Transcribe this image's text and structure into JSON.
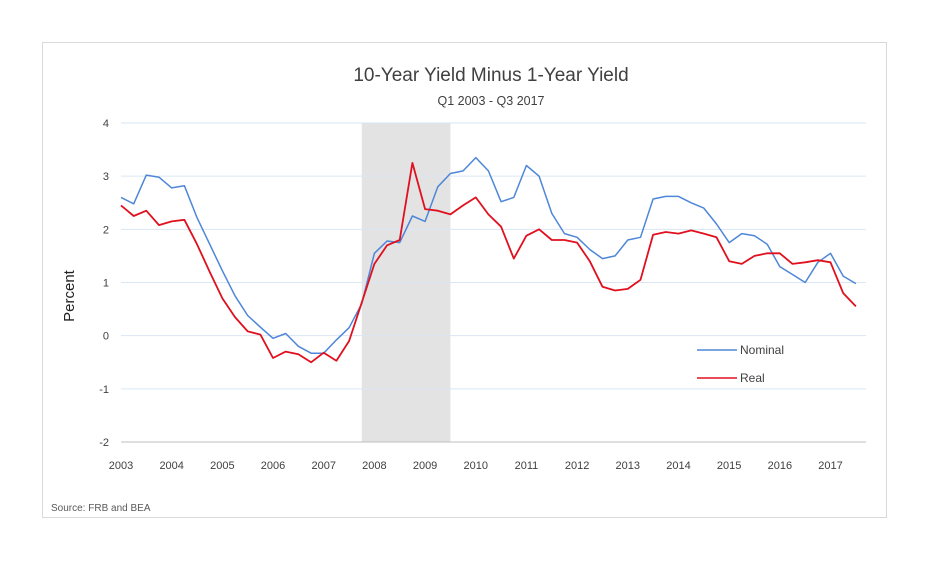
{
  "chart_data": {
    "type": "line",
    "title": "10-Year Yield Minus 1-Year Yield",
    "subtitle": "Q1 2003 - Q3 2017",
    "ylabel": "Percent",
    "xlabel": "",
    "ylim": [
      -2,
      4
    ],
    "xlim": [
      2003,
      2017.7
    ],
    "yticks": [
      "4",
      "3",
      "2",
      "1",
      "0",
      "-1",
      "-2"
    ],
    "yticks_values": [
      4,
      3,
      2,
      1,
      0,
      -1,
      -2
    ],
    "xticks": [
      "2003",
      "2004",
      "2005",
      "2006",
      "2007",
      "2008",
      "2009",
      "2010",
      "2011",
      "2012",
      "2013",
      "2014",
      "2015",
      "2016",
      "2017"
    ],
    "grid": "horizontal",
    "shaded_region": [
      2007.75,
      2009.5
    ],
    "legend_position": "right",
    "source": "Source: FRB and BEA",
    "series": [
      {
        "name": "Nominal",
        "color": "#4e86d8",
        "x": [
          2003.0,
          2003.25,
          2003.5,
          2003.75,
          2004.0,
          2004.25,
          2004.5,
          2004.75,
          2005.0,
          2005.25,
          2005.5,
          2005.75,
          2006.0,
          2006.25,
          2006.5,
          2006.75,
          2007.0,
          2007.25,
          2007.5,
          2007.75,
          2008.0,
          2008.25,
          2008.5,
          2008.75,
          2009.0,
          2009.25,
          2009.5,
          2009.75,
          2010.0,
          2010.25,
          2010.5,
          2010.75,
          2011.0,
          2011.25,
          2011.5,
          2011.75,
          2012.0,
          2012.25,
          2012.5,
          2012.75,
          2013.0,
          2013.25,
          2013.5,
          2013.75,
          2014.0,
          2014.25,
          2014.5,
          2014.75,
          2015.0,
          2015.25,
          2015.5,
          2015.75,
          2016.0,
          2016.25,
          2016.5,
          2016.75,
          2017.0,
          2017.25,
          2017.5
        ],
        "values": [
          2.6,
          2.48,
          3.02,
          2.98,
          2.78,
          2.82,
          2.22,
          1.72,
          1.22,
          0.75,
          0.38,
          0.16,
          -0.05,
          0.04,
          -0.2,
          -0.33,
          -0.33,
          -0.08,
          0.15,
          0.6,
          1.55,
          1.78,
          1.75,
          2.25,
          2.15,
          2.8,
          3.05,
          3.1,
          3.35,
          3.1,
          2.52,
          2.6,
          3.2,
          3.0,
          2.3,
          1.92,
          1.85,
          1.62,
          1.45,
          1.5,
          1.8,
          1.85,
          2.57,
          2.62,
          2.62,
          2.5,
          2.4,
          2.1,
          1.75,
          1.92,
          1.88,
          1.72,
          1.3,
          1.15,
          1.0,
          1.38,
          1.55,
          1.12,
          0.98
        ]
      },
      {
        "name": "Real",
        "color": "#e0101e",
        "x": [
          2003.0,
          2003.25,
          2003.5,
          2003.75,
          2004.0,
          2004.25,
          2004.5,
          2004.75,
          2005.0,
          2005.25,
          2005.5,
          2005.75,
          2006.0,
          2006.25,
          2006.5,
          2006.75,
          2007.0,
          2007.25,
          2007.5,
          2007.75,
          2008.0,
          2008.25,
          2008.5,
          2008.75,
          2009.0,
          2009.25,
          2009.5,
          2009.75,
          2010.0,
          2010.25,
          2010.5,
          2010.75,
          2011.0,
          2011.25,
          2011.5,
          2011.75,
          2012.0,
          2012.25,
          2012.5,
          2012.75,
          2013.0,
          2013.25,
          2013.5,
          2013.75,
          2014.0,
          2014.25,
          2014.5,
          2014.75,
          2015.0,
          2015.25,
          2015.5,
          2015.75,
          2016.0,
          2016.25,
          2016.5,
          2016.75,
          2017.0,
          2017.25,
          2017.5
        ],
        "values": [
          2.45,
          2.25,
          2.35,
          2.08,
          2.15,
          2.18,
          1.72,
          1.2,
          0.7,
          0.35,
          0.08,
          0.02,
          -0.42,
          -0.3,
          -0.35,
          -0.5,
          -0.32,
          -0.47,
          -0.1,
          0.62,
          1.35,
          1.7,
          1.8,
          3.25,
          2.38,
          2.35,
          2.28,
          2.45,
          2.6,
          2.28,
          2.05,
          1.45,
          1.88,
          2.0,
          1.8,
          1.8,
          1.75,
          1.4,
          0.92,
          0.85,
          0.88,
          1.05,
          1.9,
          1.95,
          1.92,
          1.98,
          1.92,
          1.85,
          1.4,
          1.35,
          1.5,
          1.55,
          1.55,
          1.35,
          1.38,
          1.42,
          1.38,
          0.8,
          0.55
        ]
      }
    ]
  }
}
